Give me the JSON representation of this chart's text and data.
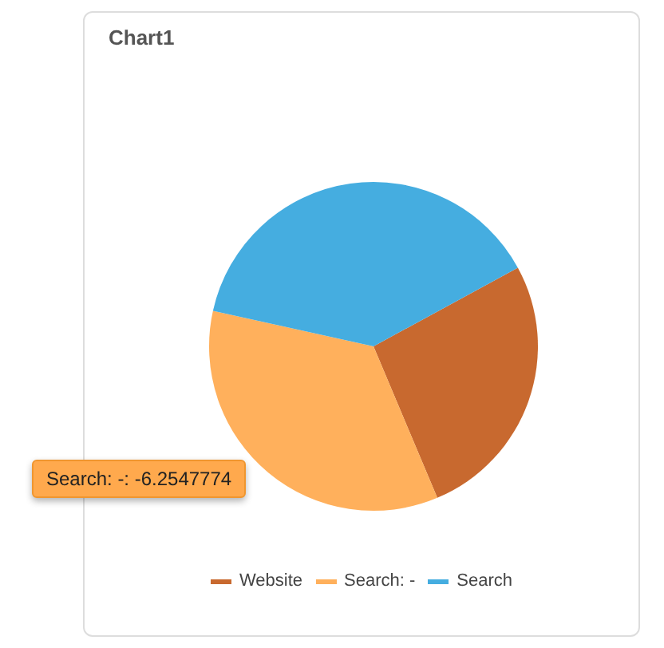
{
  "chart_data": {
    "type": "pie",
    "title": "Chart1",
    "categories": [
      "Website",
      "Search: -",
      "Search"
    ],
    "values": [
      26.6,
      34.8,
      38.6
    ],
    "colors": [
      "#c8692f",
      "#ffb05c",
      "#45ade0"
    ],
    "legend": "bottom",
    "annotations": [
      "Search: -: -6.2547774"
    ]
  }
}
